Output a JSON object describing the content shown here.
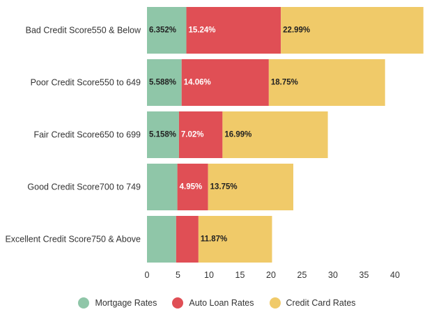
{
  "chart_data": {
    "type": "bar",
    "orientation": "horizontal",
    "stacked": true,
    "title": "",
    "xlabel": "",
    "ylabel": "",
    "categories": [
      "Bad Credit Score550 & Below",
      "Poor Credit Score550 to 649",
      "Fair Credit Score650 to 699",
      "Good Credit Score700 to 749",
      "Excellent Credit Score750 & Above"
    ],
    "series": [
      {
        "name": "Mortgage Rates",
        "color": "#8fc6a8",
        "values": [
          6.352,
          5.588,
          5.158,
          4.9,
          4.7
        ],
        "labels": [
          "6.352%",
          "5.588%",
          "5.158%",
          "",
          ""
        ]
      },
      {
        "name": "Auto Loan Rates",
        "color": "#e04f55",
        "values": [
          15.24,
          14.06,
          7.02,
          4.95,
          3.6
        ],
        "labels": [
          "15.24%",
          "14.06%",
          "7.02%",
          "4.95%",
          ""
        ]
      },
      {
        "name": "Credit Card Rates",
        "color": "#f0ca69",
        "values": [
          22.99,
          18.75,
          16.99,
          13.75,
          11.87
        ],
        "labels": [
          "22.99%",
          "18.75%",
          "16.99%",
          "13.75%",
          "11.87%"
        ]
      }
    ],
    "xlim": [
      0,
      46
    ],
    "xticks": [
      0,
      5,
      10,
      15,
      20,
      25,
      30,
      35,
      40
    ],
    "grid": false,
    "legend_position": "bottom"
  }
}
